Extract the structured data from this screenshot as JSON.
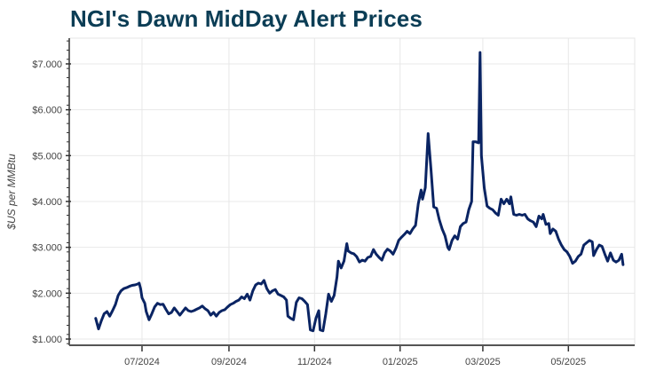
{
  "title": "NGI's Dawn MidDay Alert Prices",
  "chart_data": {
    "type": "line",
    "title": "NGI's Dawn MidDay Alert Prices",
    "xlabel": "",
    "ylabel": "$US per MMBtu",
    "ylim": [
      0.86,
      7.6
    ],
    "grid": true,
    "legend": null,
    "line_color": "#0a2463",
    "x_tick_labels": [
      "07/2024",
      "09/2024",
      "11/2024",
      "01/2025",
      "03/2025",
      "05/2025"
    ],
    "x_tick_days": [
      61,
      123,
      184,
      245,
      304,
      365
    ],
    "y_tick_labels": [
      "$1.000",
      "$2.000",
      "$3.000",
      "$4.000",
      "$5.000",
      "$6.000",
      "$7.000"
    ],
    "y_tick_values": [
      1,
      2,
      3,
      4,
      5,
      6,
      7
    ],
    "x_day_origin": "2024-05-01",
    "x_domain_days": [
      9,
      412
    ],
    "series": [
      {
        "name": "Dawn MidDay Alert",
        "points": [
          [
            28,
            1.45
          ],
          [
            30,
            1.22
          ],
          [
            32,
            1.4
          ],
          [
            34,
            1.55
          ],
          [
            36,
            1.6
          ],
          [
            38,
            1.5
          ],
          [
            40,
            1.62
          ],
          [
            42,
            1.75
          ],
          [
            44,
            1.95
          ],
          [
            46,
            2.05
          ],
          [
            48,
            2.1
          ],
          [
            50,
            2.12
          ],
          [
            52,
            2.15
          ],
          [
            54,
            2.17
          ],
          [
            56,
            2.18
          ],
          [
            58,
            2.2
          ],
          [
            59,
            2.22
          ],
          [
            60,
            2.1
          ],
          [
            61,
            1.9
          ],
          [
            63,
            1.78
          ],
          [
            64,
            1.6
          ],
          [
            66,
            1.42
          ],
          [
            68,
            1.55
          ],
          [
            70,
            1.7
          ],
          [
            72,
            1.78
          ],
          [
            74,
            1.75
          ],
          [
            76,
            1.76
          ],
          [
            78,
            1.65
          ],
          [
            80,
            1.55
          ],
          [
            82,
            1.58
          ],
          [
            84,
            1.68
          ],
          [
            86,
            1.6
          ],
          [
            88,
            1.52
          ],
          [
            90,
            1.6
          ],
          [
            92,
            1.68
          ],
          [
            94,
            1.62
          ],
          [
            96,
            1.6
          ],
          [
            98,
            1.62
          ],
          [
            100,
            1.65
          ],
          [
            102,
            1.68
          ],
          [
            104,
            1.72
          ],
          [
            106,
            1.66
          ],
          [
            108,
            1.62
          ],
          [
            110,
            1.52
          ],
          [
            112,
            1.58
          ],
          [
            114,
            1.5
          ],
          [
            116,
            1.58
          ],
          [
            118,
            1.62
          ],
          [
            120,
            1.64
          ],
          [
            122,
            1.7
          ],
          [
            124,
            1.75
          ],
          [
            126,
            1.78
          ],
          [
            128,
            1.82
          ],
          [
            130,
            1.85
          ],
          [
            132,
            1.92
          ],
          [
            134,
            1.88
          ],
          [
            136,
            1.98
          ],
          [
            138,
            1.85
          ],
          [
            140,
            2.05
          ],
          [
            142,
            2.18
          ],
          [
            144,
            2.22
          ],
          [
            146,
            2.2
          ],
          [
            148,
            2.28
          ],
          [
            150,
            2.1
          ],
          [
            152,
            2.0
          ],
          [
            154,
            2.05
          ],
          [
            156,
            2.08
          ],
          [
            158,
            1.98
          ],
          [
            160,
            1.95
          ],
          [
            162,
            1.92
          ],
          [
            164,
            1.85
          ],
          [
            165,
            1.5
          ],
          [
            167,
            1.45
          ],
          [
            169,
            1.42
          ],
          [
            171,
            1.8
          ],
          [
            173,
            1.9
          ],
          [
            175,
            1.88
          ],
          [
            177,
            1.82
          ],
          [
            179,
            1.75
          ],
          [
            181,
            1.2
          ],
          [
            183,
            1.18
          ],
          [
            185,
            1.45
          ],
          [
            187,
            1.62
          ],
          [
            188,
            1.2
          ],
          [
            190,
            1.18
          ],
          [
            192,
            1.55
          ],
          [
            194,
            1.98
          ],
          [
            196,
            1.82
          ],
          [
            198,
            1.95
          ],
          [
            200,
            2.35
          ],
          [
            201,
            2.7
          ],
          [
            203,
            2.55
          ],
          [
            205,
            2.7
          ],
          [
            207,
            3.08
          ],
          [
            208,
            2.92
          ],
          [
            210,
            2.88
          ],
          [
            212,
            2.86
          ],
          [
            214,
            2.8
          ],
          [
            216,
            2.68
          ],
          [
            218,
            2.72
          ],
          [
            220,
            2.7
          ],
          [
            222,
            2.78
          ],
          [
            224,
            2.8
          ],
          [
            226,
            2.95
          ],
          [
            228,
            2.85
          ],
          [
            230,
            2.78
          ],
          [
            232,
            2.72
          ],
          [
            234,
            2.88
          ],
          [
            236,
            2.96
          ],
          [
            238,
            2.92
          ],
          [
            240,
            2.85
          ],
          [
            242,
            2.98
          ],
          [
            244,
            3.15
          ],
          [
            246,
            3.22
          ],
          [
            248,
            3.28
          ],
          [
            250,
            3.35
          ],
          [
            252,
            3.3
          ],
          [
            254,
            3.4
          ],
          [
            256,
            3.48
          ],
          [
            258,
            3.95
          ],
          [
            260,
            4.25
          ],
          [
            261,
            4.05
          ],
          [
            263,
            4.3
          ],
          [
            265,
            5.48
          ],
          [
            267,
            4.7
          ],
          [
            269,
            3.88
          ],
          [
            271,
            3.85
          ],
          [
            273,
            3.6
          ],
          [
            275,
            3.4
          ],
          [
            277,
            3.25
          ],
          [
            279,
            3.0
          ],
          [
            280,
            2.95
          ],
          [
            282,
            3.15
          ],
          [
            284,
            3.25
          ],
          [
            286,
            3.18
          ],
          [
            288,
            3.45
          ],
          [
            290,
            3.52
          ],
          [
            292,
            3.55
          ],
          [
            294,
            3.82
          ],
          [
            296,
            4.0
          ],
          [
            297,
            5.3
          ],
          [
            299,
            5.3
          ],
          [
            301,
            5.28
          ],
          [
            302,
            7.25
          ],
          [
            303,
            5.0
          ],
          [
            305,
            4.3
          ],
          [
            307,
            3.9
          ],
          [
            309,
            3.85
          ],
          [
            311,
            3.82
          ],
          [
            313,
            3.75
          ],
          [
            315,
            3.7
          ],
          [
            317,
            4.05
          ],
          [
            319,
            3.95
          ],
          [
            321,
            4.05
          ],
          [
            323,
            3.95
          ],
          [
            324,
            4.1
          ],
          [
            326,
            3.72
          ],
          [
            328,
            3.7
          ],
          [
            330,
            3.72
          ],
          [
            332,
            3.7
          ],
          [
            334,
            3.72
          ],
          [
            336,
            3.62
          ],
          [
            338,
            3.58
          ],
          [
            340,
            3.55
          ],
          [
            342,
            3.45
          ],
          [
            344,
            3.68
          ],
          [
            346,
            3.62
          ],
          [
            347,
            3.72
          ],
          [
            349,
            3.5
          ],
          [
            351,
            3.52
          ],
          [
            352,
            3.3
          ],
          [
            354,
            3.4
          ],
          [
            356,
            3.35
          ],
          [
            358,
            3.18
          ],
          [
            360,
            3.05
          ],
          [
            362,
            2.95
          ],
          [
            364,
            2.9
          ],
          [
            366,
            2.8
          ],
          [
            368,
            2.65
          ],
          [
            370,
            2.7
          ],
          [
            372,
            2.8
          ],
          [
            374,
            2.85
          ],
          [
            376,
            3.05
          ],
          [
            378,
            3.1
          ],
          [
            380,
            3.15
          ],
          [
            382,
            3.12
          ],
          [
            383,
            2.82
          ],
          [
            385,
            2.95
          ],
          [
            387,
            3.05
          ],
          [
            389,
            3.02
          ],
          [
            391,
            2.85
          ],
          [
            393,
            2.7
          ],
          [
            395,
            2.88
          ],
          [
            397,
            2.72
          ],
          [
            399,
            2.68
          ],
          [
            401,
            2.72
          ],
          [
            403,
            2.85
          ],
          [
            404,
            2.62
          ]
        ]
      }
    ]
  }
}
